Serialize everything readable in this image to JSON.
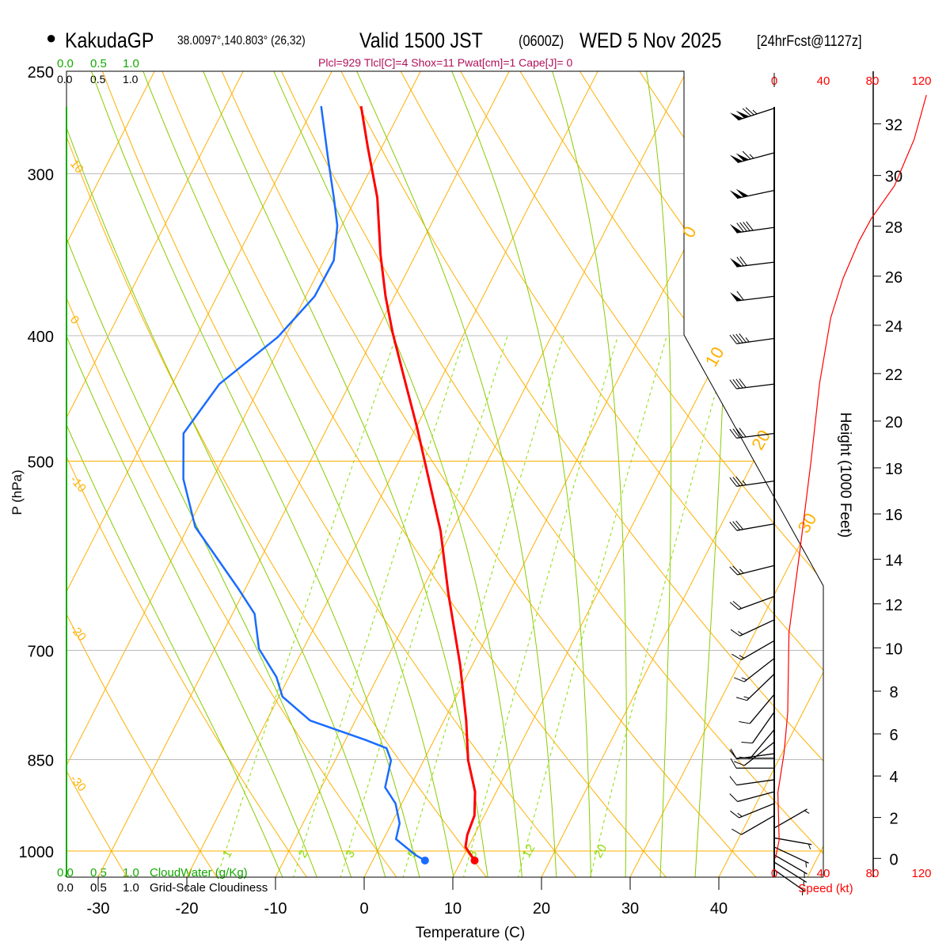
{
  "header": {
    "station_marker": "●",
    "station": "KakudaGP",
    "coords": "38.0097°,140.803° (26,32)",
    "valid": "Valid 1500 JST",
    "utc": "(0600Z)",
    "date": "WED 5 Nov 2025",
    "forecast": "[24hrFcst@1127z]",
    "indices": "Plcl=929 Tlcl[C]=4 Shox=11 Pwat[cm]=1 Cape[J]= 0"
  },
  "cloud": {
    "ticks": [
      "0.0",
      "0.5",
      "1.0"
    ],
    "water_label": "CloudWater (g/Kg)",
    "cover_label": "Grid-Scale Cloudiness"
  },
  "colors": {
    "temperature": "#ff0000",
    "dewpoint": "#1a6cff",
    "isotherm": "#ffb000",
    "moist_adiabat": "#88cc00",
    "mixing_ratio": "#88dd00",
    "indices": "#b0105a",
    "cloud_water": "#11aa00",
    "speed": "#ff0000"
  },
  "chart_data": {
    "type": "line",
    "subtype": "skew-T log-P",
    "title": "KakudaGP Valid 1500 JST (0600Z) WED 5 Nov 2025",
    "xlabel": "Temperature (C)",
    "ylabel": "P (hPa)",
    "pressure_ticks": [
      250,
      300,
      400,
      500,
      700,
      850,
      1000
    ],
    "temperature_ticks": [
      -30,
      -20,
      -10,
      0,
      10,
      20,
      30,
      40
    ],
    "ylim": [
      1048,
      250
    ],
    "isotherm_labels": [
      0,
      10,
      20,
      30
    ],
    "dry_adiabat_labels": [
      10,
      0,
      -10,
      -20,
      -30
    ],
    "mixing_ratio_labels": [
      1,
      2,
      3,
      5,
      8,
      12,
      20
    ],
    "series": [
      {
        "name": "Temperature",
        "p": [
          266,
          286,
          313,
          346,
          373,
          398,
          433,
          471,
          513,
          566,
          633,
          718,
          793,
          851,
          900,
          939,
          972,
          993,
          1017
        ],
        "T": [
          -44.7,
          -41.6,
          -37.6,
          -34.0,
          -31.0,
          -28.1,
          -24.0,
          -19.9,
          -15.9,
          -11.3,
          -6.8,
          -1.4,
          2.5,
          5.0,
          7.6,
          8.9,
          9.2,
          9.7,
          11.5
        ]
      },
      {
        "name": "Dewpoint",
        "p": [
          266,
          292,
          313,
          329,
          350,
          373,
          401,
          436,
          476,
          516,
          562,
          628,
          656,
          698,
          734,
          760,
          793,
          821,
          833,
          851,
          893,
          919,
          952,
          979,
          1007,
          1017
        ],
        "T": [
          -49.2,
          -45.4,
          -42.5,
          -40.5,
          -38.9,
          -39.0,
          -40.8,
          -44.7,
          -45.9,
          -43.3,
          -39.2,
          -30.7,
          -27.5,
          -25.0,
          -21.4,
          -19.6,
          -15.1,
          -7.7,
          -4.9,
          -3.7,
          -2.8,
          -0.7,
          0.9,
          1.4,
          4.5,
          5.9
        ]
      }
    ],
    "wind": [
      {
        "p": 267,
        "dir": 252,
        "speed": 125
      },
      {
        "p": 289,
        "dir": 255,
        "speed": 115
      },
      {
        "p": 309,
        "dir": 258,
        "speed": 100
      },
      {
        "p": 330,
        "dir": 262,
        "speed": 90
      },
      {
        "p": 351,
        "dir": 263,
        "speed": 70
      },
      {
        "p": 373,
        "dir": 263,
        "speed": 60
      },
      {
        "p": 402,
        "dir": 262,
        "speed": 45
      },
      {
        "p": 436,
        "dir": 263,
        "speed": 40
      },
      {
        "p": 476,
        "dir": 263,
        "speed": 40
      },
      {
        "p": 518,
        "dir": 262,
        "speed": 35
      },
      {
        "p": 559,
        "dir": 260,
        "speed": 30
      },
      {
        "p": 602,
        "dir": 256,
        "speed": 25
      },
      {
        "p": 636,
        "dir": 250,
        "speed": 20
      },
      {
        "p": 663,
        "dir": 245,
        "speed": 15
      },
      {
        "p": 688,
        "dir": 240,
        "speed": 15
      },
      {
        "p": 710,
        "dir": 232,
        "speed": 15
      },
      {
        "p": 730,
        "dir": 226,
        "speed": 15
      },
      {
        "p": 757,
        "dir": 220,
        "speed": 12
      },
      {
        "p": 781,
        "dir": 215,
        "speed": 10
      },
      {
        "p": 806,
        "dir": 220,
        "speed": 10
      },
      {
        "p": 824,
        "dir": 232,
        "speed": 10
      },
      {
        "p": 841,
        "dir": 262,
        "speed": 10
      },
      {
        "p": 848,
        "dir": 270,
        "speed": 12
      },
      {
        "p": 863,
        "dir": 270,
        "speed": 10
      },
      {
        "p": 881,
        "dir": 262,
        "speed": 10
      },
      {
        "p": 900,
        "dir": 255,
        "speed": 12
      },
      {
        "p": 919,
        "dir": 248,
        "speed": 15
      },
      {
        "p": 939,
        "dir": 240,
        "speed": 10
      },
      {
        "p": 960,
        "dir": 60,
        "speed": 5
      },
      {
        "p": 977,
        "dir": 100,
        "speed": 5
      },
      {
        "p": 993,
        "dir": 115,
        "speed": 3
      },
      {
        "p": 1007,
        "dir": 120,
        "speed": 3
      },
      {
        "p": 1020,
        "dir": 122,
        "speed": 3
      },
      {
        "p": 1034,
        "dir": 125,
        "speed": 3
      }
    ],
    "speed_profile": {
      "height_kft": [
        0,
        0.9,
        3.2,
        5.1,
        7.0,
        10.7,
        14.4,
        18.3,
        21.6,
        24.3,
        25.9,
        27.4,
        28.3,
        29.6,
        31.4,
        33.1
      ],
      "speed_kt": [
        1,
        4,
        3,
        8,
        11,
        12,
        21,
        30,
        37,
        46,
        56,
        69,
        79,
        98,
        114,
        124
      ]
    },
    "height_axis": {
      "label": "Height (1000 Feet)",
      "ticks": [
        0,
        2,
        4,
        6,
        8,
        10,
        12,
        14,
        16,
        18,
        20,
        22,
        24,
        26,
        28,
        30,
        32
      ]
    },
    "speed_axis": {
      "label": "Speed (kt)",
      "ticks": [
        0,
        40,
        80,
        120
      ]
    }
  }
}
